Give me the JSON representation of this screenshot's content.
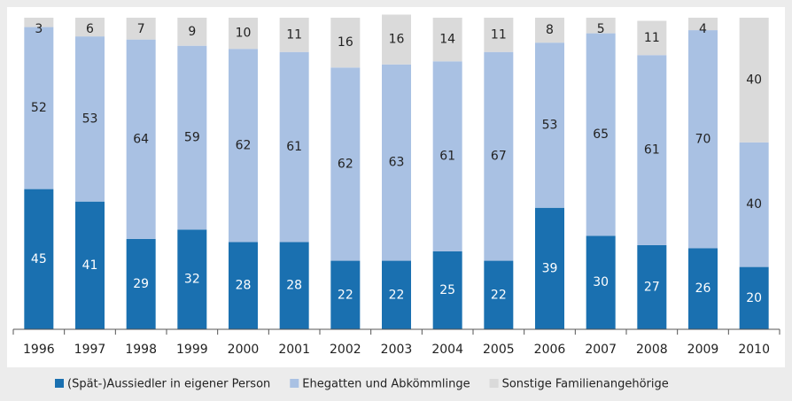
{
  "chart_data": {
    "type": "stacked_bar",
    "categories": [
      "1996",
      "1997",
      "1998",
      "1999",
      "2000",
      "2001",
      "2002",
      "2003",
      "2004",
      "2005",
      "2006",
      "2007",
      "2008",
      "2009",
      "2010"
    ],
    "series": [
      {
        "name": "(Spät-)Aussiedler in eigener Person",
        "color": "#1a70b0",
        "values": [
          45,
          41,
          29,
          32,
          28,
          28,
          22,
          22,
          25,
          22,
          39,
          30,
          27,
          26,
          20
        ]
      },
      {
        "name": "Ehegatten und Abkömmlinge",
        "color": "#a9c1e3",
        "values": [
          52,
          53,
          64,
          59,
          62,
          61,
          62,
          63,
          61,
          67,
          53,
          65,
          61,
          70,
          40
        ]
      },
      {
        "name": "Sonstige Familienangehörige",
        "color": "#dadada",
        "values": [
          3,
          6,
          7,
          9,
          10,
          11,
          16,
          16,
          14,
          11,
          8,
          5,
          11,
          4,
          40
        ]
      }
    ],
    "ylim": [
      0,
      100
    ]
  }
}
